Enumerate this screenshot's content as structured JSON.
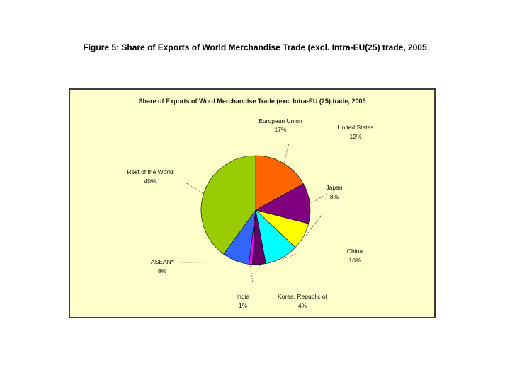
{
  "figure": {
    "caption": "Figure 5: Share of Exports of World Merchandise Trade (excl. Intra-EU(25) trade, 2005"
  },
  "chart_data": {
    "type": "pie",
    "title": "Share of Exports of Word Merchandise Trade (exc. Intra-EU (25) trade, 2005",
    "legend": "none",
    "slices": [
      {
        "name": "European Union",
        "value": 17,
        "label": "17%",
        "color": "#ff6600"
      },
      {
        "name": "United States",
        "value": 12,
        "label": "12%",
        "color": "#800080"
      },
      {
        "name": "Japan",
        "value": 8,
        "label": "8%",
        "color": "#ffff00"
      },
      {
        "name": "China",
        "value": 10,
        "label": "10%",
        "color": "#00ffff"
      },
      {
        "name": "Korea, Republic of",
        "value": 4,
        "label": "4%",
        "color": "#660066"
      },
      {
        "name": "India",
        "value": 1,
        "label": "1%",
        "color": "#ff00ff"
      },
      {
        "name": "ASEAN*",
        "value": 8,
        "label": "8%",
        "color": "#3366ff"
      },
      {
        "name": "Rest of the World",
        "value": 40,
        "label": "40%",
        "color": "#99cc00"
      }
    ]
  }
}
